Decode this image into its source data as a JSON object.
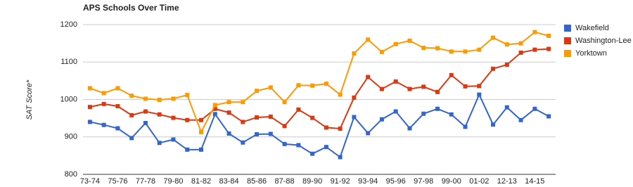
{
  "chart_data": {
    "type": "line",
    "title": "APS Schools Over Time",
    "y_label": "SAT Score*",
    "categories": [
      "73-74",
      null,
      "75-76",
      null,
      "77-78",
      null,
      "79-80",
      null,
      "81-82",
      null,
      "83-84",
      null,
      "85-86",
      null,
      "87-88",
      null,
      "89-90",
      null,
      "91-92",
      null,
      "93-94",
      null,
      "95-96",
      null,
      "97-98",
      null,
      "99-00",
      null,
      "01-02",
      null,
      "12-13",
      null,
      "14-15",
      null
    ],
    "series": [
      {
        "name": "Wakefield",
        "color": "#3366cc",
        "values": [
          940,
          932,
          923,
          897,
          937,
          884,
          893,
          866,
          866,
          961,
          909,
          885,
          907,
          908,
          881,
          878,
          855,
          873,
          846,
          953,
          910,
          947,
          968,
          923,
          962,
          975,
          960,
          927,
          1013,
          933,
          979,
          945,
          975,
          955
        ]
      },
      {
        "name": "Washington-Lee",
        "color": "#dc3912",
        "values": [
          980,
          988,
          982,
          958,
          968,
          960,
          951,
          945,
          945,
          975,
          965,
          940,
          952,
          954,
          929,
          973,
          951,
          925,
          922,
          1005,
          1060,
          1028,
          1048,
          1028,
          1034,
          1020,
          1065,
          1035,
          1036,
          1082,
          1093,
          1125,
          1133,
          1135
        ]
      },
      {
        "name": "Yorktown",
        "color": "#ff9900",
        "values": [
          1030,
          1017,
          1030,
          1010,
          1002,
          999,
          1002,
          1012,
          913,
          985,
          993,
          993,
          1023,
          1032,
          993,
          1038,
          1037,
          1042,
          1013,
          1123,
          1160,
          1127,
          1148,
          1157,
          1138,
          1137,
          1128,
          1128,
          1133,
          1165,
          1147,
          1150,
          1180,
          1170
        ]
      }
    ],
    "ylim": [
      800,
      1200
    ],
    "yticks": [
      800,
      900,
      1000,
      1100,
      1200
    ],
    "grid": true,
    "legend": "right"
  }
}
